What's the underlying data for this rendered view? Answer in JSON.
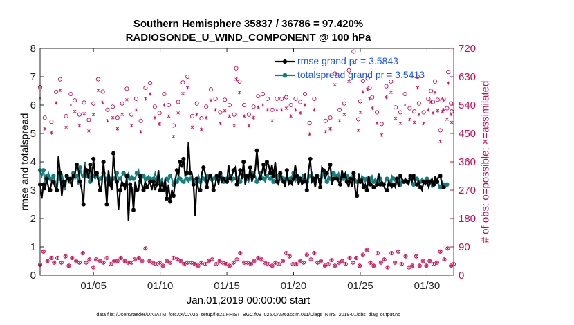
{
  "chart_data": {
    "type": "line",
    "title_line1": "Southern Hemisphere 35837 / 36786 = 97.420%",
    "title_line2": "RADIOSONDE_U_WIND_COMPONENT @ 100 hPa",
    "xlabel": "Jan.01,2019 00:00:00 start",
    "ylabel_left": "rmse and totalspread",
    "ylabel_right": "# of obs: o=possible; ×=assimilated",
    "footnote": "data file: /Users/raeder/DAI/ATM_forcXX/CAM6_setup/f.e21.FHIST_BGC.f09_025.CAM6assim.011/Diags_NTrS_2019-01/obs_diag_output.nc",
    "xlim": [
      1,
      32
    ],
    "ylim_left": [
      0,
      8
    ],
    "ylim_right": [
      0,
      720
    ],
    "x_ticks": [
      5,
      10,
      15,
      20,
      25,
      30
    ],
    "x_tick_labels": [
      "01/05",
      "01/10",
      "01/15",
      "01/20",
      "01/25",
      "01/30"
    ],
    "y_ticks_left": [
      "0",
      "1",
      "2",
      "3",
      "4",
      "5",
      "6",
      "7",
      "8"
    ],
    "y_ticks_right": [
      "0",
      "90",
      "180",
      "270",
      "360",
      "450",
      "540",
      "630",
      "720"
    ],
    "legend": {
      "rmse_label": "rmse grand pr = 3.5843",
      "spread_label": "totalspread grand pr = 3.5413"
    },
    "colors": {
      "rmse": "#000000",
      "spread": "#138080",
      "obs": "#cc0a55",
      "legend_text": "#1a55ff"
    },
    "x_start": 1.0,
    "x_step": 0.25,
    "rmse": [
      3.2,
      2.7,
      3.2,
      3.0,
      3.4,
      3.1,
      3.0,
      3.3,
      3.3,
      3.1,
      3.0,
      4.2,
      3.6,
      2.8,
      3.3,
      3.1,
      3.5,
      3.3,
      3.4,
      3.1,
      3.5,
      3.6,
      3.9,
      3.7,
      3.3,
      3.0,
      2.5,
      3.8,
      3.7,
      3.4,
      3.9,
      3.3,
      4.1,
      3.5,
      3.6,
      3.3,
      3.0,
      3.2,
      4.0,
      3.3,
      2.5,
      3.7,
      3.2,
      3.0,
      4.3,
      3.6,
      3.3,
      2.3,
      3.0,
      3.3,
      3.2,
      3.0,
      3.5,
      1.9,
      3.2,
      3.1,
      2.3,
      3.3,
      3.0,
      3.0,
      3.5,
      3.2,
      3.0,
      3.3,
      3.1,
      3.2,
      3.3,
      3.0,
      3.3,
      3.0,
      3.2,
      3.7,
      3.0,
      3.3,
      3.0,
      3.4,
      2.7,
      3.2,
      2.6,
      3.0,
      2.8,
      3.3,
      3.7,
      3.5,
      4.0,
      3.8,
      4.1,
      3.5,
      3.6,
      4.7,
      3.6,
      3.6,
      3.2,
      2.1,
      3.4,
      3.0,
      3.0,
      3.6,
      3.8,
      3.6,
      3.1,
      3.4,
      3.5,
      3.4,
      3.0,
      3.2,
      3.5,
      3.2,
      3.6,
      3.3,
      3.4,
      3.3,
      3.3,
      3.9,
      3.4,
      3.5,
      3.7,
      3.8,
      3.2,
      3.4,
      3.7,
      3.4,
      4.0,
      3.2,
      3.5,
      3.4,
      3.8,
      3.3,
      3.5,
      3.7,
      4.4,
      3.7,
      3.4,
      3.6,
      3.9,
      3.5,
      4.0,
      3.9,
      3.6,
      3.9,
      3.5,
      4.0,
      3.3,
      3.2,
      3.6,
      3.4,
      3.3,
      3.1,
      3.7,
      3.2,
      3.3,
      3.2,
      3.4,
      3.9,
      3.5,
      3.2,
      3.4,
      3.2,
      3.3,
      3.6,
      3.0,
      3.7,
      4.1,
      3.3,
      3.4,
      3.1,
      3.5,
      3.4,
      3.1,
      3.8,
      3.7,
      3.4,
      3.6,
      3.7,
      3.9,
      3.2,
      3.4,
      3.4,
      3.4,
      3.3,
      3.2,
      3.7,
      3.5,
      3.6,
      3.3,
      3.1,
      3.4,
      3.1,
      3.6,
      3.0,
      2.8,
      3.6,
      3.3,
      3.4,
      3.1,
      3.2,
      3.0,
      3.5,
      3.2,
      3.2,
      3.1,
      3.1,
      3.2,
      3.6,
      3.2,
      3.3,
      3.2,
      3.0,
      3.0,
      3.3,
      3.2,
      3.1,
      3.2,
      3.1,
      3.4,
      3.1,
      3.5,
      3.4,
      3.3,
      3.4,
      3.3,
      3.2,
      3.5,
      3.3,
      3.5,
      3.3,
      3.2,
      3.3,
      3.1,
      3.0,
      3.3,
      3.2,
      3.3,
      3.1,
      3.3,
      3.4,
      3.2,
      3.5,
      3.3,
      3.5,
      3.5,
      3.2,
      3.1
    ],
    "spread": [
      3.7,
      3.5,
      3.7,
      3.2,
      3.5,
      3.6,
      3.4,
      3.3,
      3.5,
      3.3,
      3.0,
      3.5,
      3.4,
      3.6,
      3.3,
      3.0,
      3.5,
      3.4,
      3.3,
      3.3,
      3.6,
      3.4,
      3.5,
      3.2,
      3.8,
      3.5,
      3.5,
      4.0,
      3.5,
      3.6,
      3.3,
      3.8,
      3.5,
      3.4,
      3.5,
      3.3,
      3.4,
      3.5,
      3.6,
      3.3,
      3.4,
      3.6,
      3.4,
      3.3,
      3.4,
      3.5,
      3.6,
      3.4,
      3.4,
      3.5,
      3.6,
      3.5,
      3.5,
      3.6,
      3.4,
      3.5,
      3.4,
      3.4,
      3.6,
      3.7,
      3.3,
      3.4,
      3.5,
      3.3,
      3.4,
      3.5,
      3.4,
      3.3,
      3.4,
      3.6,
      3.4,
      3.4,
      3.3,
      3.4,
      3.2,
      3.3,
      3.4,
      3.3,
      3.5,
      3.4,
      3.2,
      3.4,
      3.3,
      3.5,
      3.4,
      3.3,
      3.3,
      3.4,
      3.4,
      3.3,
      3.4,
      3.5,
      3.3,
      3.4,
      3.3,
      3.5,
      3.3,
      3.5,
      3.4,
      3.3,
      3.5,
      3.5,
      3.4,
      3.3,
      3.4,
      3.5,
      3.4,
      3.3,
      3.4,
      3.5,
      3.3,
      3.3,
      3.4,
      3.5,
      3.5,
      3.3,
      3.4,
      3.4,
      3.4,
      3.5,
      3.3,
      3.4,
      3.5,
      3.4,
      3.4,
      3.3,
      3.5,
      3.4,
      3.6,
      3.5,
      3.3,
      3.4,
      3.6,
      3.5,
      3.4,
      3.3,
      3.5,
      3.4,
      3.4,
      3.5,
      3.3,
      3.4,
      3.5,
      3.3,
      3.4,
      3.5,
      3.4,
      3.3,
      3.4,
      3.3,
      3.4,
      3.5,
      3.6,
      3.3,
      3.4,
      3.5,
      3.4,
      3.3,
      3.5,
      3.4,
      3.3,
      3.4,
      3.5,
      3.6,
      3.4,
      3.3,
      3.5,
      3.4,
      3.3,
      3.4,
      3.6,
      3.4,
      3.3,
      3.5,
      3.4,
      3.5,
      3.6,
      3.4,
      3.5,
      3.6,
      3.4,
      3.5,
      3.4,
      3.4,
      3.5,
      3.3,
      3.4,
      3.3,
      3.5,
      3.4,
      3.3,
      3.4,
      3.3,
      3.5,
      3.4,
      3.3,
      3.4,
      3.3,
      3.4,
      3.5,
      3.3,
      3.4,
      3.3,
      3.3,
      3.4,
      3.3,
      3.2,
      3.3,
      3.4,
      3.3,
      3.3,
      3.5,
      3.4,
      3.3,
      3.4,
      3.3,
      3.2,
      3.4,
      3.3,
      3.4,
      3.3,
      3.2,
      3.4,
      3.3,
      3.2,
      3.3,
      3.4,
      3.2,
      3.3,
      3.4,
      3.3,
      3.3,
      3.4,
      3.2,
      3.3,
      3.1,
      3.2,
      3.4,
      3.3,
      3.2,
      3.1,
      3.3,
      3.2,
      3.1,
      3.2
    ],
    "obs_possible": [
      33,
      75,
      45,
      55,
      40,
      55,
      40,
      60,
      30,
      55,
      45,
      40,
      70,
      40,
      50,
      25,
      50,
      45,
      40,
      55,
      35,
      45,
      45,
      55,
      45,
      40,
      40,
      50,
      55,
      45,
      85,
      45,
      40,
      35,
      40,
      30,
      45,
      40,
      55,
      50,
      45,
      35,
      40,
      40,
      35,
      30,
      40,
      35,
      45,
      50,
      35,
      45,
      40,
      35,
      30,
      40,
      50,
      70,
      40,
      40,
      35,
      45,
      55,
      50,
      40,
      35,
      30,
      40,
      35,
      45,
      70,
      60,
      35,
      35,
      45,
      40,
      65,
      50,
      70,
      40,
      45,
      30,
      35,
      48,
      30,
      40,
      45,
      35,
      55,
      40,
      55,
      30,
      65,
      80,
      40,
      30,
      70,
      40,
      50,
      25,
      70,
      40,
      75,
      35,
      60,
      25,
      30,
      60,
      30,
      45,
      30,
      45,
      35,
      40,
      75,
      50,
      85,
      30,
      35
    ],
    "obs_possible_x": [
      1.0,
      1.25,
      1.55,
      1.85,
      2.05,
      2.3,
      2.6,
      2.9,
      3.15,
      3.4,
      3.7,
      3.95,
      4.2,
      4.45,
      4.7,
      5.0,
      5.2,
      5.5,
      5.75,
      6.0,
      6.3,
      6.55,
      6.8,
      7.05,
      7.35,
      7.6,
      7.85,
      8.1,
      8.4,
      8.65,
      8.9,
      9.2,
      9.45,
      9.7,
      9.95,
      10.2,
      10.5,
      10.75,
      11.0,
      11.3,
      11.55,
      11.8,
      12.05,
      12.35,
      12.6,
      12.85,
      13.1,
      13.4,
      13.65,
      13.9,
      14.2,
      14.45,
      14.7,
      14.95,
      15.2,
      15.5,
      15.75,
      16.0,
      16.3,
      16.55,
      16.8,
      17.05,
      17.35,
      17.6,
      17.85,
      18.1,
      18.4,
      18.65,
      18.9,
      19.2,
      19.45,
      19.7,
      19.95,
      20.2,
      20.5,
      20.75,
      21.0,
      21.3,
      21.55,
      21.8,
      22.05,
      22.35,
      22.6,
      22.85,
      23.1,
      23.4,
      23.65,
      23.9,
      24.2,
      24.45,
      24.7,
      24.95,
      25.2,
      25.5,
      25.75,
      26.0,
      26.3,
      26.55,
      26.8,
      27.05,
      27.35,
      27.6,
      27.85,
      28.1,
      28.4,
      28.65,
      28.9,
      29.2,
      29.45,
      29.7,
      29.95,
      30.2,
      30.5,
      30.75,
      31.0,
      31.3,
      31.55,
      31.8,
      32.0
    ],
    "obs_high_possible": [
      597,
      500,
      487,
      582,
      622,
      505,
      575,
      555,
      510,
      548,
      493,
      545,
      622,
      583,
      525,
      535,
      500,
      545,
      592,
      510,
      560,
      490,
      595,
      610,
      535,
      515,
      575,
      540,
      475,
      550,
      612,
      630,
      505,
      545,
      498,
      535,
      590,
      560,
      517,
      557,
      540,
      510,
      657,
      615,
      540,
      510,
      535,
      568,
      575,
      560,
      525,
      560,
      560,
      565,
      540,
      560,
      550,
      575,
      483,
      560,
      490,
      500,
      640,
      525,
      545,
      650,
      710,
      495,
      617,
      625,
      565,
      517,
      480,
      600,
      615,
      533,
      517,
      575,
      530,
      520,
      545,
      517,
      560,
      550,
      557,
      555,
      530,
      520,
      630,
      615,
      460,
      560,
      645,
      545,
      552,
      595,
      585
    ],
    "obs_high_x": [
      1.0,
      1.35,
      1.85,
      2.2,
      2.5,
      2.95,
      3.3,
      3.6,
      3.95,
      4.3,
      4.65,
      5.0,
      5.35,
      5.7,
      6.05,
      6.45,
      6.8,
      7.15,
      7.5,
      7.85,
      8.2,
      8.55,
      8.9,
      9.25,
      9.6,
      9.95,
      10.3,
      10.65,
      11.0,
      11.35,
      11.7,
      12.05,
      12.4,
      12.75,
      13.1,
      13.45,
      13.8,
      14.15,
      14.5,
      14.85,
      15.2,
      15.55,
      15.7,
      15.95,
      16.3,
      16.65,
      17.0,
      17.35,
      17.7,
      18.05,
      18.4,
      18.75,
      19.1,
      19.45,
      19.8,
      20.15,
      20.5,
      20.85,
      21.2,
      21.55,
      22.4,
      22.75,
      23.1,
      23.45,
      23.8,
      24.15,
      24.5,
      24.85,
      25.2,
      25.55,
      25.9,
      26.25,
      26.6,
      26.95,
      27.3,
      27.65,
      28.0,
      28.35,
      28.7,
      29.05,
      29.4,
      29.75,
      30.1,
      30.45,
      30.8,
      31.15,
      31.5,
      31.85,
      29.3,
      30.6,
      31.0,
      31.25,
      31.6,
      31.8,
      25.0,
      25.7,
      30.3
    ]
  }
}
